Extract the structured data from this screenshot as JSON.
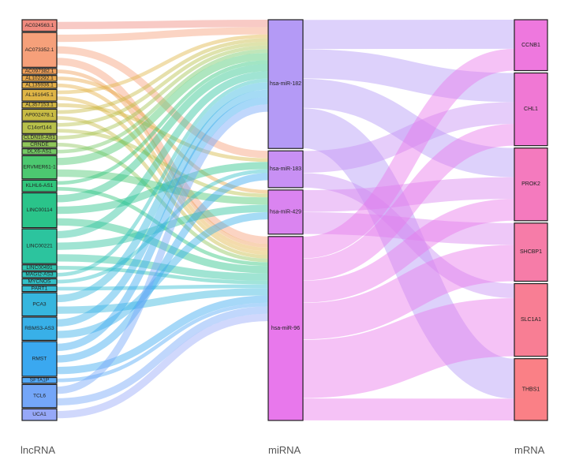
{
  "columns": {
    "lncrna": "lncRNA",
    "mirna": "miRNA",
    "mrna": "mRNA"
  },
  "lncrna_nodes": [
    {
      "name": "AC024563.1",
      "color": "#f08a7e"
    },
    {
      "name": "AC073352.1",
      "color": "#f6a07a"
    },
    {
      "name": "AC097382.1",
      "color": "#f0a05a"
    },
    {
      "name": "AL102292.1",
      "color": "#e9a84a"
    },
    {
      "name": "AL135936.1",
      "color": "#e6b048"
    },
    {
      "name": "AL161645.1",
      "color": "#dfb546"
    },
    {
      "name": "AL357153.1",
      "color": "#d4b844"
    },
    {
      "name": "AP002478.1",
      "color": "#c8bb44"
    },
    {
      "name": "C14orf144",
      "color": "#b7c04a"
    },
    {
      "name": "CLDN10-AS1",
      "color": "#a3c452"
    },
    {
      "name": "CRNDE",
      "color": "#8fc65a"
    },
    {
      "name": "DLX6-AS1",
      "color": "#74c864"
    },
    {
      "name": "ERVMER61-1",
      "color": "#4cc870"
    },
    {
      "name": "KLHL6-AS1",
      "color": "#30c67c"
    },
    {
      "name": "LINC00114",
      "color": "#2ac48a"
    },
    {
      "name": "LINC00221",
      "color": "#2cc49e"
    },
    {
      "name": "LINC00491",
      "color": "#2ec4ae"
    },
    {
      "name": "MAGI2-AS3",
      "color": "#30c2bc"
    },
    {
      "name": "MYCNOS",
      "color": "#32c0c8"
    },
    {
      "name": "PART1",
      "color": "#34bcd2"
    },
    {
      "name": "PCA3",
      "color": "#36b6de"
    },
    {
      "name": "RBMS3-AS3",
      "color": "#38b0e8"
    },
    {
      "name": "RMST",
      "color": "#3aa8f0"
    },
    {
      "name": "SFTA1P",
      "color": "#52a8f6"
    },
    {
      "name": "TCL6",
      "color": "#74a6f8"
    },
    {
      "name": "UCA1",
      "color": "#96a8f8"
    }
  ],
  "mirna_nodes": [
    {
      "name": "hsa-miR-182",
      "color": "#b49af6"
    },
    {
      "name": "hsa-miR-183",
      "color": "#c890f4"
    },
    {
      "name": "hsa-miR-429",
      "color": "#da84f0"
    },
    {
      "name": "hsa-miR-96",
      "color": "#e878ec"
    }
  ],
  "mrna_nodes": [
    {
      "name": "CCNB1",
      "color": "#ee78de"
    },
    {
      "name": "CHL1",
      "color": "#f078d4"
    },
    {
      "name": "PROK2",
      "color": "#f47abe"
    },
    {
      "name": "SHCBP1",
      "color": "#f67ca8"
    },
    {
      "name": "SLC1A1",
      "color": "#f87e94"
    },
    {
      "name": "THBS1",
      "color": "#fa8086"
    }
  ],
  "links_lnc_mir": [
    {
      "source": "AC024563.1",
      "target": "hsa-miR-182",
      "value": 1
    },
    {
      "source": "AC073352.1",
      "target": "hsa-miR-182",
      "value": 1
    },
    {
      "source": "AC073352.1",
      "target": "hsa-miR-96",
      "value": 1
    },
    {
      "source": "AC073352.1",
      "target": "hsa-miR-183",
      "value": 1
    },
    {
      "source": "AC097382.1",
      "target": "hsa-miR-96",
      "value": 0.5
    },
    {
      "source": "AL102292.1",
      "target": "hsa-miR-429",
      "value": 0.5
    },
    {
      "source": "AL135936.1",
      "target": "hsa-miR-96",
      "value": 0.5
    },
    {
      "source": "AL161645.1",
      "target": "hsa-miR-182",
      "value": 0.5
    },
    {
      "source": "AL161645.1",
      "target": "hsa-miR-96",
      "value": 0.5
    },
    {
      "source": "AL357153.1",
      "target": "hsa-miR-183",
      "value": 0.5
    },
    {
      "source": "AP002478.1",
      "target": "hsa-miR-182",
      "value": 0.5
    },
    {
      "source": "AP002478.1",
      "target": "hsa-miR-96",
      "value": 0.5
    },
    {
      "source": "C14orf144",
      "target": "hsa-miR-182",
      "value": 0.5
    },
    {
      "source": "C14orf144",
      "target": "hsa-miR-429",
      "value": 0.5
    },
    {
      "source": "CLDN10-AS1",
      "target": "hsa-miR-182",
      "value": 0.5
    },
    {
      "source": "CRNDE",
      "target": "hsa-miR-96",
      "value": 0.5
    },
    {
      "source": "DLX6-AS1",
      "target": "hsa-miR-182",
      "value": 0.5
    },
    {
      "source": "ERVMER61-1",
      "target": "hsa-miR-182",
      "value": 1
    },
    {
      "source": "ERVMER61-1",
      "target": "hsa-miR-429",
      "value": 1
    },
    {
      "source": "KLHL6-AS1",
      "target": "hsa-miR-182",
      "value": 0.5
    },
    {
      "source": "KLHL6-AS1",
      "target": "hsa-miR-96",
      "value": 0.5
    },
    {
      "source": "LINC00114",
      "target": "hsa-miR-182",
      "value": 1
    },
    {
      "source": "LINC00114",
      "target": "hsa-miR-183",
      "value": 1
    },
    {
      "source": "LINC00114",
      "target": "hsa-miR-96",
      "value": 1
    },
    {
      "source": "LINC00221",
      "target": "hsa-miR-182",
      "value": 1
    },
    {
      "source": "LINC00221",
      "target": "hsa-miR-429",
      "value": 1
    },
    {
      "source": "LINC00221",
      "target": "hsa-miR-96",
      "value": 1
    },
    {
      "source": "LINC00491",
      "target": "hsa-miR-96",
      "value": 0.5
    },
    {
      "source": "MAGI2-AS3",
      "target": "hsa-miR-182",
      "value": 0.5
    },
    {
      "source": "MYCNOS",
      "target": "hsa-miR-183",
      "value": 0.5
    },
    {
      "source": "PART1",
      "target": "hsa-miR-96",
      "value": 0.5
    },
    {
      "source": "PCA3",
      "target": "hsa-miR-182",
      "value": 1
    },
    {
      "source": "PCA3",
      "target": "hsa-miR-96",
      "value": 1
    },
    {
      "source": "RBMS3-AS3",
      "target": "hsa-miR-182",
      "value": 1
    },
    {
      "source": "RBMS3-AS3",
      "target": "hsa-miR-429",
      "value": 1
    },
    {
      "source": "RMST",
      "target": "hsa-miR-182",
      "value": 1
    },
    {
      "source": "RMST",
      "target": "hsa-miR-183",
      "value": 1
    },
    {
      "source": "RMST",
      "target": "hsa-miR-96",
      "value": 1
    },
    {
      "source": "SFTA1P",
      "target": "hsa-miR-96",
      "value": 0.5
    },
    {
      "source": "TCL6",
      "target": "hsa-miR-182",
      "value": 1
    },
    {
      "source": "TCL6",
      "target": "hsa-miR-96",
      "value": 1
    },
    {
      "source": "UCA1",
      "target": "hsa-miR-96",
      "value": 1
    }
  ],
  "links_mir_mrna": [
    {
      "source": "hsa-miR-182",
      "target": "CCNB1",
      "value": 4
    },
    {
      "source": "hsa-miR-182",
      "target": "CHL1",
      "value": 4
    },
    {
      "source": "hsa-miR-182",
      "target": "PROK2",
      "value": 4
    },
    {
      "source": "hsa-miR-182",
      "target": "THBS1",
      "value": 5.5
    },
    {
      "source": "hsa-miR-183",
      "target": "CHL1",
      "value": 3
    },
    {
      "source": "hsa-miR-183",
      "target": "SLC1A1",
      "value": 2
    },
    {
      "source": "hsa-miR-429",
      "target": "PROK2",
      "value": 3
    },
    {
      "source": "hsa-miR-429",
      "target": "SHCBP1",
      "value": 3
    },
    {
      "source": "hsa-miR-96",
      "target": "CCNB1",
      "value": 3
    },
    {
      "source": "hsa-miR-96",
      "target": "CHL1",
      "value": 3
    },
    {
      "source": "hsa-miR-96",
      "target": "PROK2",
      "value": 3
    },
    {
      "source": "hsa-miR-96",
      "target": "SHCBP1",
      "value": 5
    },
    {
      "source": "hsa-miR-96",
      "target": "SLC1A1",
      "value": 8
    },
    {
      "source": "hsa-miR-96",
      "target": "THBS1",
      "value": 3
    }
  ]
}
